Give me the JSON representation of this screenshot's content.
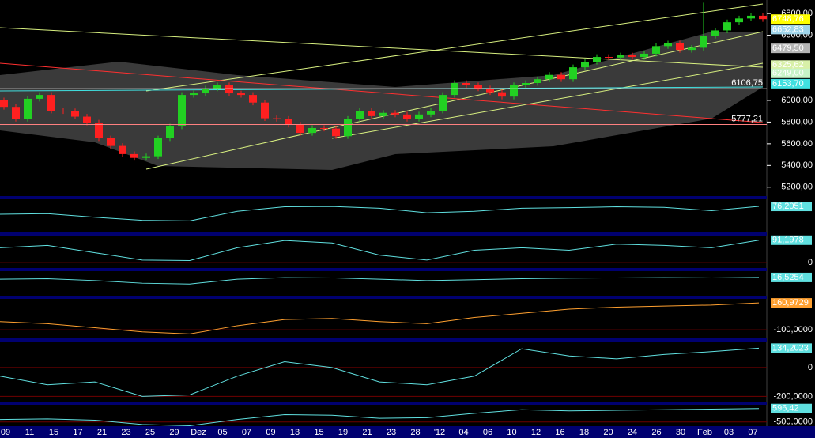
{
  "chart_data": {
    "type": "candlestick",
    "categories": [
      "09",
      "11",
      "15",
      "17",
      "21",
      "23",
      "25",
      "29",
      "Dez",
      "05",
      "07",
      "09",
      "13",
      "15",
      "19",
      "21",
      "23",
      "28",
      "'12",
      "04",
      "06",
      "10",
      "12",
      "16",
      "18",
      "20",
      "24",
      "26",
      "30",
      "Feb",
      "03",
      "07"
    ],
    "open": [
      6000,
      5940,
      5830,
      6015,
      6050,
      5905,
      5900,
      5850,
      5795,
      5650,
      5580,
      5505,
      5470,
      5485,
      5650,
      5760,
      6050,
      6065,
      6110,
      6140,
      6065,
      6050,
      5980,
      5835,
      5830,
      5775,
      5700,
      5745,
      5740,
      5670,
      5830,
      5905,
      5855,
      5885,
      5870,
      5830,
      5870,
      5905,
      6050,
      6160,
      6140,
      6110,
      6075,
      6035,
      6140,
      6160,
      6195,
      6235,
      6195,
      6305,
      6355,
      6400,
      6395,
      6415,
      6400,
      6430,
      6500,
      6525,
      6465,
      6485,
      6595,
      6645,
      6720,
      6755,
      6780
    ],
    "high": [
      6025,
      5965,
      6040,
      6075,
      6075,
      5930,
      5925,
      5875,
      5820,
      5675,
      5605,
      5530,
      5510,
      5675,
      5785,
      6075,
      6090,
      6135,
      6165,
      6165,
      6090,
      6075,
      6005,
      5860,
      5855,
      5800,
      5770,
      5770,
      5765,
      5855,
      5930,
      5930,
      5910,
      5910,
      5895,
      5895,
      5930,
      6075,
      6185,
      6185,
      6165,
      6135,
      6100,
      6165,
      6185,
      6220,
      6260,
      6260,
      6330,
      6380,
      6425,
      6425,
      6440,
      6440,
      6455,
      6525,
      6550,
      6550,
      6510,
      6900,
      6670,
      6745,
      6780,
      6805,
      6805
    ],
    "low": [
      5915,
      5805,
      5805,
      5990,
      5880,
      5875,
      5825,
      5770,
      5625,
      5555,
      5480,
      5445,
      5445,
      5460,
      5625,
      5735,
      6025,
      6040,
      6085,
      6040,
      6025,
      5955,
      5810,
      5805,
      5750,
      5675,
      5675,
      5715,
      5645,
      5645,
      5805,
      5830,
      5830,
      5845,
      5805,
      5805,
      5845,
      5880,
      6025,
      6115,
      6085,
      6050,
      6010,
      6010,
      6115,
      6135,
      6170,
      6170,
      6170,
      6280,
      6330,
      6370,
      6370,
      6375,
      6375,
      6405,
      6475,
      6440,
      6440,
      6460,
      6570,
      6620,
      6695,
      6730,
      6723.76
    ],
    "close": [
      5940,
      5830,
      6015,
      6050,
      5905,
      5900,
      5850,
      5795,
      5650,
      5580,
      5505,
      5470,
      5485,
      5650,
      5760,
      6050,
      6065,
      6110,
      6140,
      6065,
      6050,
      5980,
      5835,
      5830,
      5775,
      5700,
      5745,
      5740,
      5670,
      5830,
      5905,
      5855,
      5885,
      5870,
      5830,
      5870,
      5905,
      6050,
      6160,
      6140,
      6110,
      6075,
      6035,
      6140,
      6160,
      6195,
      6235,
      6195,
      6305,
      6355,
      6400,
      6395,
      6415,
      6400,
      6430,
      6500,
      6525,
      6465,
      6485,
      6595,
      6645,
      6720,
      6755,
      6780,
      6748.76
    ],
    "up_color": "#22d022",
    "down_color": "#ff2020",
    "ylim": [
      5140,
      6925
    ],
    "yticks": [
      {
        "value": 5200,
        "label": "5200,00"
      },
      {
        "value": 5400,
        "label": "5400,00"
      },
      {
        "value": 5600,
        "label": "5600,00"
      },
      {
        "value": 5800,
        "label": "5800,00"
      },
      {
        "value": 6000,
        "label": "6000,00"
      },
      {
        "value": 6600,
        "label": "6600,00"
      },
      {
        "value": 6800,
        "label": "6800,00"
      }
    ],
    "levels": [
      {
        "value": 6748.76,
        "label": "6748,76",
        "color": "#ffff00",
        "style": "box"
      },
      {
        "value": 6652.83,
        "label": "6652,83",
        "color": "#9fd4ea",
        "style": "box"
      },
      {
        "value": 6479.5,
        "label": "6479,50",
        "color": "#b4b4b4",
        "style": "box"
      },
      {
        "value": 6325.62,
        "label": "6325,62",
        "color": "#d8f0a8",
        "style": "box"
      },
      {
        "value": 6249,
        "label": "6249,00",
        "color": "#c8f4c8",
        "style": "box"
      },
      {
        "value": 6153.7,
        "label": "6153,70",
        "color": "#40e0e0",
        "style": "box"
      },
      {
        "value": 6106.75,
        "label": "6106,75",
        "color": "#ffffff",
        "style": "line"
      },
      {
        "value": 5777.21,
        "label": "5777,21",
        "color": "#ff8080",
        "style": "line"
      }
    ],
    "panels": [
      {
        "values": [
          50,
          52,
          40,
          30,
          28,
          60,
          75,
          76,
          70,
          55,
          60,
          70,
          72,
          75,
          73,
          62,
          76.2051
        ],
        "ylim": [
          0,
          100
        ],
        "yticks": [],
        "color": "#60e0e0",
        "last": {
          "value": 76.2051,
          "label": "76,2051"
        }
      },
      {
        "values": [
          60,
          70,
          40,
          10,
          8,
          60,
          90,
          80,
          30,
          10,
          50,
          60,
          50,
          75,
          70,
          60,
          91.1978
        ],
        "ylim": [
          -10,
          110
        ],
        "yticks": [
          0
        ],
        "color": "#60e0e0",
        "last": {
          "value": 91.1978,
          "label": "91,1978"
        }
      },
      {
        "values": [
          10,
          12,
          5,
          -5,
          -8,
          10,
          16,
          15,
          10,
          5,
          8,
          12,
          14,
          15,
          16,
          15,
          16.5254
        ],
        "ylim": [
          -40,
          40
        ],
        "yticks": [],
        "color": "#60e0e0",
        "last": {
          "value": 16.5254,
          "label": "16,5254"
        }
      },
      {
        "values": [
          -20,
          -40,
          -80,
          -120,
          -140,
          -60,
          0,
          10,
          -20,
          -40,
          20,
          60,
          100,
          120,
          130,
          140,
          160.9729
        ],
        "ylim": [
          -160,
          200
        ],
        "yticks": [
          {
            "value": -100,
            "label": "-100,0000"
          }
        ],
        "color": "#ffa030",
        "last": {
          "value": 160.9729,
          "label": "160,9729"
        }
      },
      {
        "values": [
          -60,
          -120,
          -100,
          -200,
          -190,
          -60,
          40,
          0,
          -100,
          -120,
          -60,
          130,
          80,
          60,
          90,
          110,
          134.2023
        ],
        "ylim": [
          -220,
          180
        ],
        "yticks": [
          0,
          {
            "value": -200,
            "label": "-200,0000"
          }
        ],
        "color": "#60e0e0",
        "last": {
          "value": 134.2023,
          "label": "134,2023"
        }
      },
      {
        "values": [
          -300,
          -250,
          -350,
          -700,
          -800,
          -300,
          100,
          50,
          -200,
          -150,
          200,
          500,
          400,
          450,
          500,
          550,
          596.42
        ],
        "ylim": [
          -900,
          900
        ],
        "yticks": [
          {
            "value": -500,
            "label": "-500,0000"
          }
        ],
        "color": "#60e0e0",
        "last": {
          "value": 596.42,
          "label": "596,42"
        }
      }
    ]
  }
}
